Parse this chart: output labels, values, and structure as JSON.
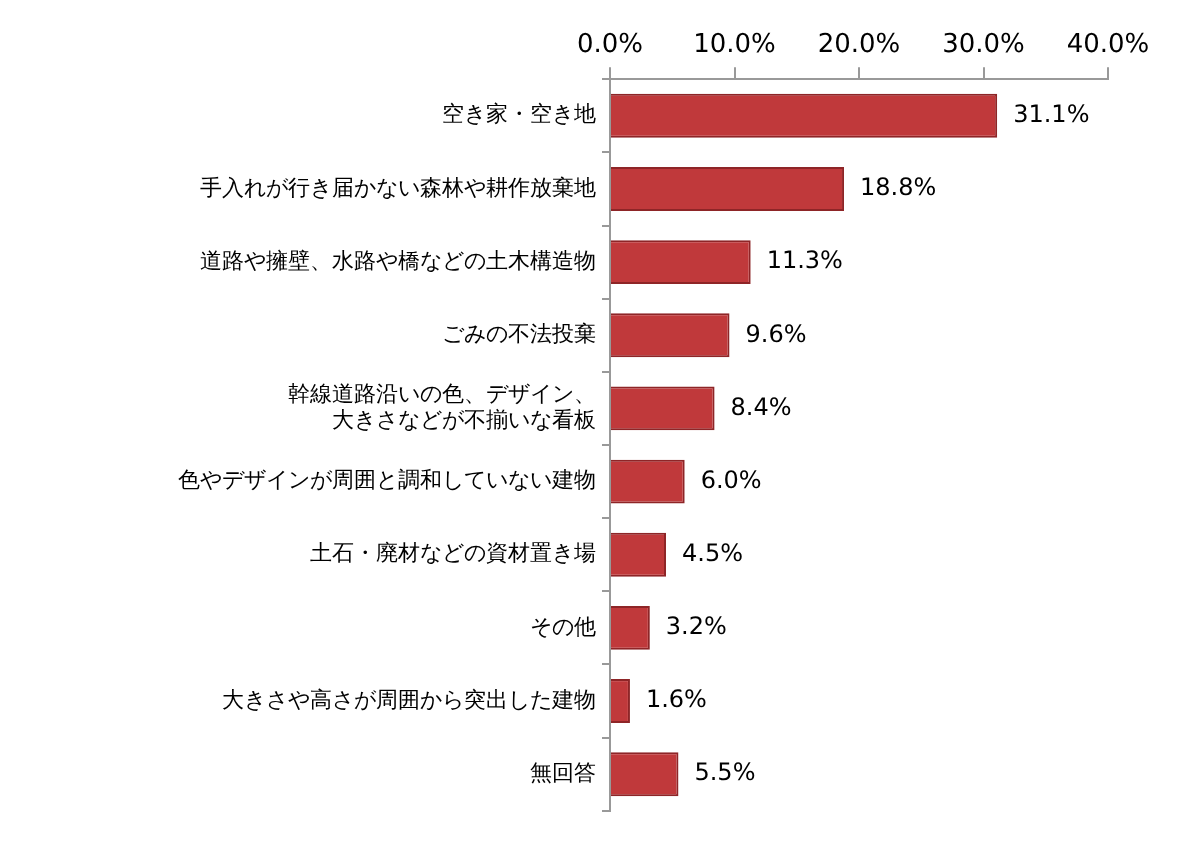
{
  "chart_data": {
    "type": "bar",
    "orientation": "horizontal",
    "categories": [
      "空き家・空き地",
      "手入れが行き届かない森林や耕作放棄地",
      "道路や擁壁、水路や橋などの土木構造物",
      "ごみの不法投棄",
      "幹線道路沿いの色、デザイン、大きさなどが不揃いな看板",
      "色やデザインが周囲と調和していない建物",
      "土石・廃材などの資材置き場",
      "その他",
      "大きさや高さが周囲から突出した建物",
      "無回答"
    ],
    "values": [
      31.1,
      18.8,
      11.3,
      9.6,
      8.4,
      6.0,
      4.5,
      3.2,
      1.6,
      5.5
    ],
    "value_labels": [
      "31.1%",
      "18.8%",
      "11.3%",
      "9.6%",
      "8.4%",
      "6.0%",
      "4.5%",
      "3.2%",
      "1.6%",
      "5.5%"
    ],
    "color": "#c0393b",
    "xlim": [
      0,
      40
    ],
    "xticks": [
      {
        "value": 0,
        "label": "0.0%"
      },
      {
        "value": 10,
        "label": "10.0%"
      },
      {
        "value": 20,
        "label": "20.0%"
      },
      {
        "value": 30,
        "label": "30.0%"
      },
      {
        "value": 40,
        "label": "40.0%"
      }
    ],
    "grid": false,
    "legend": false
  }
}
